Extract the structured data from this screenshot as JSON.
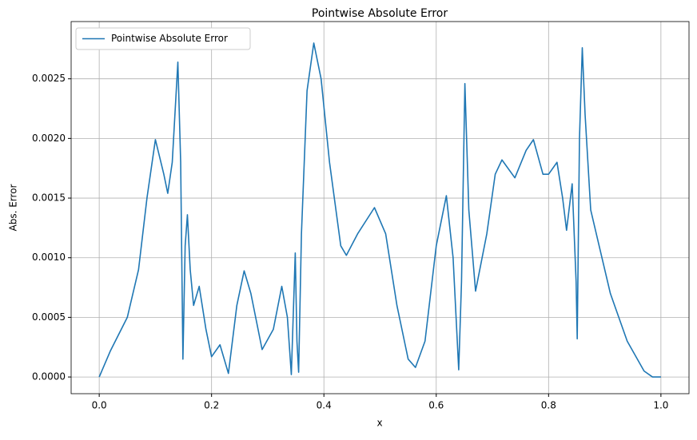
{
  "chart_data": {
    "type": "line",
    "title": "Pointwise Absolute Error",
    "x_label": "x",
    "y_label": "Abs. Error",
    "grid": true,
    "legend": "upper left",
    "xlim": [
      -0.05,
      1.05
    ],
    "ylim": [
      -0.00014,
      0.00298
    ],
    "xticks": [
      {
        "value": 0,
        "label": "0.0"
      },
      0.2,
      0.4,
      0.6,
      0.8,
      {
        "value": 1,
        "label": "1.0"
      }
    ],
    "yticks": [
      {
        "value": 0,
        "label": "0.0000"
      },
      {
        "value": 0.0005,
        "label": "0.0005"
      },
      {
        "value": 0.001,
        "label": "0.0010"
      },
      {
        "value": 0.0015,
        "label": "0.0015"
      },
      {
        "value": 0.002,
        "label": "0.0020"
      },
      {
        "value": 0.0025,
        "label": "0.0025"
      }
    ],
    "x": [
      0,
      0.02,
      0.05,
      0.07,
      0.085,
      0.1,
      0.115,
      0.122,
      0.13,
      0.14,
      0.145,
      0.149,
      0.153,
      0.157,
      0.162,
      0.168,
      0.178,
      0.19,
      0.2,
      0.215,
      0.23,
      0.245,
      0.258,
      0.27,
      0.29,
      0.31,
      0.325,
      0.335,
      0.342,
      0.349,
      0.352,
      0.355,
      0.36,
      0.37,
      0.382,
      0.395,
      0.41,
      0.43,
      0.44,
      0.46,
      0.49,
      0.51,
      0.53,
      0.55,
      0.563,
      0.58,
      0.6,
      0.618,
      0.63,
      0.64,
      0.645,
      0.651,
      0.658,
      0.67,
      0.69,
      0.705,
      0.717,
      0.74,
      0.76,
      0.773,
      0.79,
      0.8,
      0.815,
      0.825,
      0.832,
      0.842,
      0.849,
      0.851,
      0.855,
      0.86,
      0.865,
      0.875,
      0.89,
      0.91,
      0.94,
      0.97,
      0.985,
      1.0
    ],
    "series": [
      {
        "name": "Pointwise Absolute Error",
        "color": "#1f77b4",
        "values": [
          0,
          0.00022,
          0.0005,
          0.0009,
          0.0015,
          0.00199,
          0.0017,
          0.00154,
          0.0018,
          0.00264,
          0.0018,
          0.00015,
          0.0011,
          0.00136,
          0.0009,
          0.0006,
          0.00076,
          0.0004,
          0.00017,
          0.00027,
          3e-05,
          0.0006,
          0.00089,
          0.0007,
          0.00023,
          0.0004,
          0.00076,
          0.0005,
          2e-05,
          0.00104,
          0.0003,
          4e-05,
          0.0012,
          0.0024,
          0.0028,
          0.0025,
          0.0018,
          0.0011,
          0.00102,
          0.0012,
          0.00142,
          0.0012,
          0.0006,
          0.00015,
          8e-05,
          0.0003,
          0.0011,
          0.00152,
          0.001,
          6e-05,
          0.0008,
          0.00246,
          0.0014,
          0.00072,
          0.0012,
          0.0017,
          0.00182,
          0.00167,
          0.0019,
          0.00199,
          0.0017,
          0.0017,
          0.0018,
          0.0015,
          0.00123,
          0.00162,
          0.0008,
          0.00032,
          0.002,
          0.00276,
          0.0022,
          0.0014,
          0.0011,
          0.0007,
          0.0003,
          5e-05,
          0,
          0
        ]
      }
    ]
  }
}
